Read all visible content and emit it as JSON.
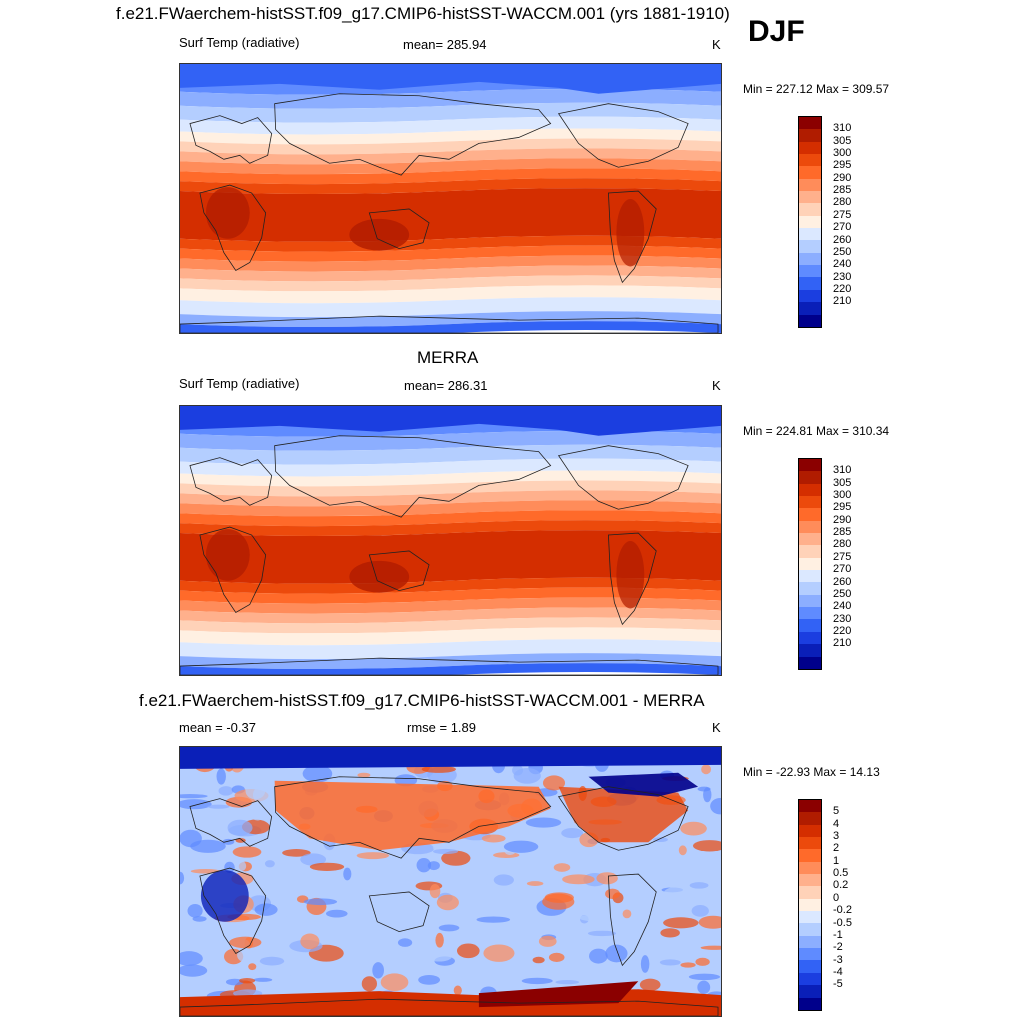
{
  "header": {
    "title": "f.e21.FWaerchem-histSST.f09_g17.CMIP6-histSST-WACCM.001 (yrs 1881-1910)",
    "season": "DJF"
  },
  "panels": [
    {
      "id": "model",
      "title": "",
      "variable": "Surf Temp (radiative)",
      "stat": "mean= 285.94",
      "units": "K",
      "minmax": "Min = 227.12 Max = 309.57",
      "colorbar": {
        "labels": [
          "310",
          "305",
          "300",
          "295",
          "290",
          "285",
          "280",
          "275",
          "270",
          "260",
          "250",
          "240",
          "230",
          "220",
          "210"
        ],
        "colors": [
          "#8b0000",
          "#b01c00",
          "#d42e00",
          "#ec4a0c",
          "#ff6a2a",
          "#ff8c5a",
          "#ffb08c",
          "#ffd2b8",
          "#fff0e2",
          "#dbe8ff",
          "#b4ceff",
          "#8caeff",
          "#5f8bff",
          "#3262f5",
          "#1b3ee0",
          "#0a1fb8",
          "#00008b"
        ]
      },
      "kind": "temp"
    },
    {
      "id": "obs",
      "title": "MERRA",
      "variable": "Surf Temp (radiative)",
      "stat": "mean= 286.31",
      "units": "K",
      "minmax": "Min = 224.81 Max = 310.34",
      "colorbar": {
        "labels": [
          "310",
          "305",
          "300",
          "295",
          "290",
          "285",
          "280",
          "275",
          "270",
          "260",
          "250",
          "240",
          "230",
          "220",
          "210"
        ],
        "colors": [
          "#8b0000",
          "#b01c00",
          "#d42e00",
          "#ec4a0c",
          "#ff6a2a",
          "#ff8c5a",
          "#ffb08c",
          "#ffd2b8",
          "#fff0e2",
          "#dbe8ff",
          "#b4ceff",
          "#8caeff",
          "#5f8bff",
          "#3262f5",
          "#1b3ee0",
          "#0a1fb8",
          "#00008b"
        ]
      },
      "kind": "temp"
    },
    {
      "id": "diff",
      "title": "f.e21.FWaerchem-histSST.f09_g17.CMIP6-histSST-WACCM.001 - MERRA",
      "variable": "mean =  -0.37",
      "stat": "rmse =   1.89",
      "units": "K",
      "minmax": "Min = -22.93 Max =  14.13",
      "colorbar": {
        "labels": [
          "5",
          "4",
          "3",
          "2",
          "1",
          "0.5",
          "0.2",
          "0",
          "-0.2",
          "-0.5",
          "-1",
          "-2",
          "-3",
          "-4",
          "-5"
        ],
        "colors": [
          "#8b0000",
          "#b01c00",
          "#d42e00",
          "#ec4a0c",
          "#ff6a2a",
          "#ff8c5a",
          "#ffb08c",
          "#ffd2b8",
          "#fff0e2",
          "#dbe8ff",
          "#b4ceff",
          "#8caeff",
          "#5f8bff",
          "#3262f5",
          "#1b3ee0",
          "#0a1fb8",
          "#00008b"
        ]
      },
      "kind": "diff"
    }
  ]
}
